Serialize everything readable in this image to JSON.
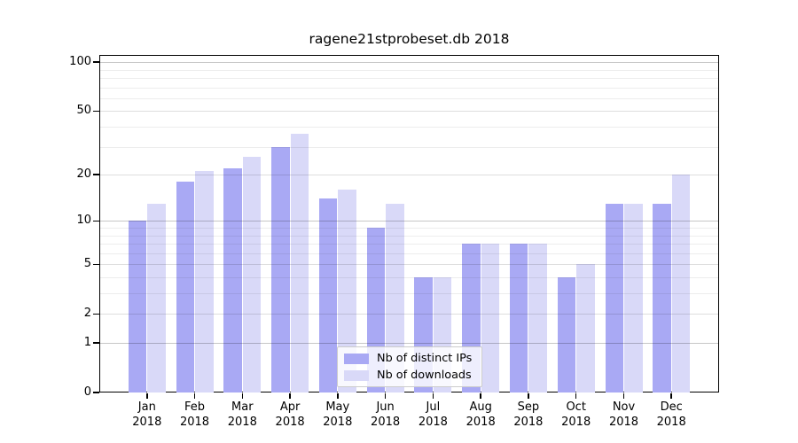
{
  "chart_data": {
    "type": "bar",
    "title": "ragene21stprobeset.db 2018",
    "categories": [
      "Jan",
      "Feb",
      "Mar",
      "Apr",
      "May",
      "Jun",
      "Jul",
      "Aug",
      "Sep",
      "Oct",
      "Nov",
      "Dec"
    ],
    "x_axis": {
      "year": "2018"
    },
    "series": [
      {
        "name": "Nb of distinct IPs",
        "color": "#a9a9f4",
        "values": [
          10,
          18,
          22,
          30,
          14,
          9,
          4,
          7,
          7,
          4,
          13,
          13
        ]
      },
      {
        "name": "Nb of downloads",
        "color": "#d9d9f8",
        "values": [
          13,
          21,
          26,
          36,
          16,
          13,
          4,
          7,
          7,
          5,
          13,
          20
        ]
      }
    ],
    "y_axis": {
      "scale": "log1p",
      "ticks": [
        0,
        1,
        2,
        5,
        10,
        20,
        50,
        100
      ],
      "minor_gridlines": [
        3,
        4,
        6,
        7,
        8,
        9,
        30,
        40,
        60,
        70,
        80,
        90
      ],
      "range": [
        0,
        111
      ]
    },
    "grid": true,
    "legend_position": "lower-center",
    "colors": {
      "axis": "#000000",
      "legend_border": "#cccccc"
    }
  }
}
